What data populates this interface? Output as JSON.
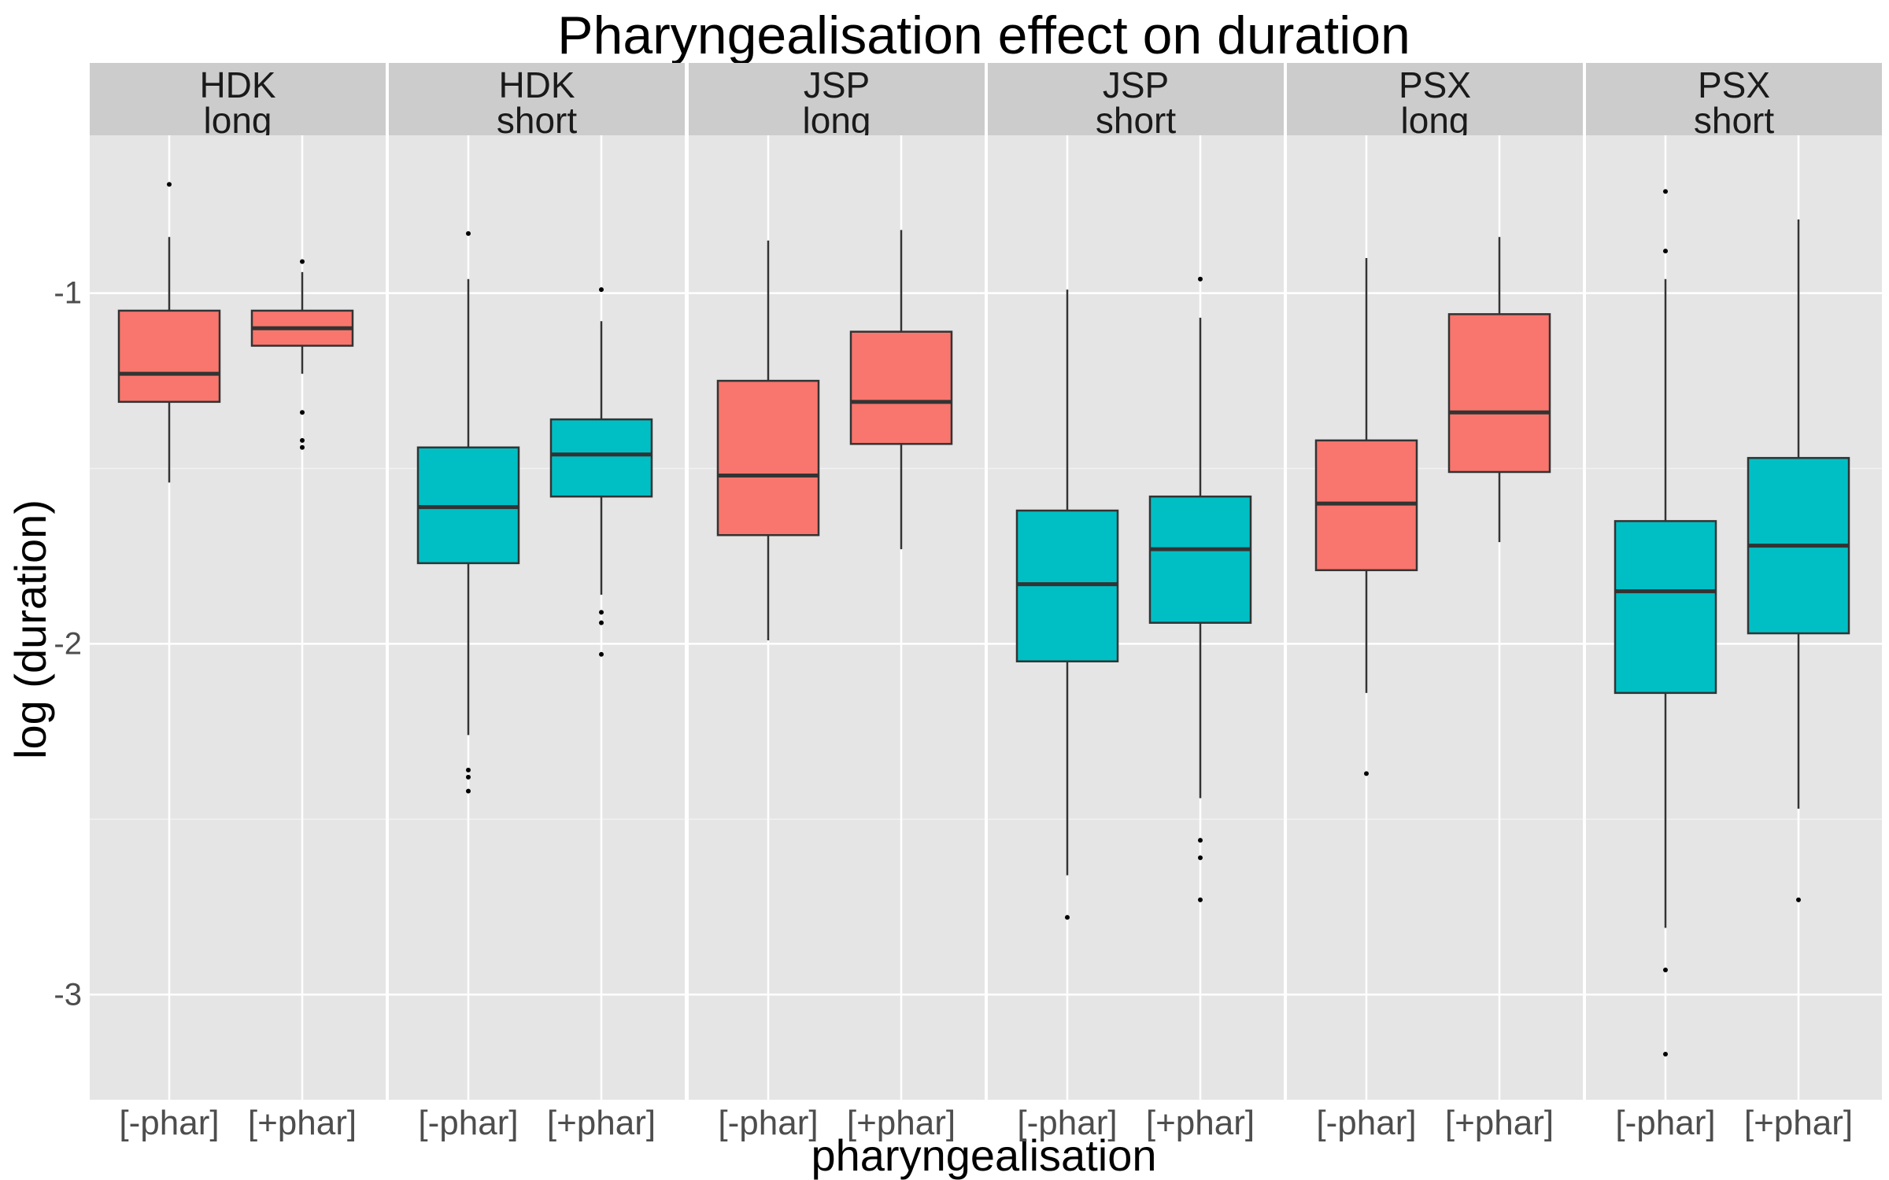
{
  "chart_data": {
    "type": "boxplot",
    "title": "Pharyngealisation effect on duration",
    "xlabel": "pharyngealisation",
    "ylabel": "log (duration)",
    "ylim": [
      -3.3,
      -0.55
    ],
    "yticks": [
      -1,
      -2,
      -3
    ],
    "ytick_labels": [
      "-1",
      "-2",
      "-3"
    ],
    "categories": [
      "[-phar]",
      "[+phar]"
    ],
    "grid": true,
    "legend": "none",
    "colors": {
      "long": "#F8766D",
      "short": "#00BFC4",
      "panel_bg": "#E5E5E5",
      "strip_bg": "#CCCCCC"
    },
    "panels": [
      {
        "strip": [
          "HDK",
          "long"
        ],
        "fill": "long",
        "boxes": [
          {
            "q1": -1.31,
            "median": -1.23,
            "q3": -1.05,
            "whisker_low": -1.54,
            "whisker_high": -0.84,
            "outliers": [
              -0.69
            ]
          },
          {
            "q1": -1.15,
            "median": -1.1,
            "q3": -1.05,
            "whisker_low": -1.23,
            "whisker_high": -0.94,
            "outliers": [
              -0.91,
              -1.34,
              -1.42,
              -1.44
            ]
          }
        ]
      },
      {
        "strip": [
          "HDK",
          "short"
        ],
        "fill": "short",
        "boxes": [
          {
            "q1": -1.77,
            "median": -1.61,
            "q3": -1.44,
            "whisker_low": -2.26,
            "whisker_high": -0.96,
            "outliers": [
              -0.83,
              -2.36,
              -2.38,
              -2.42
            ]
          },
          {
            "q1": -1.58,
            "median": -1.46,
            "q3": -1.36,
            "whisker_low": -1.86,
            "whisker_high": -1.08,
            "outliers": [
              -0.99,
              -1.91,
              -1.94,
              -2.03
            ]
          }
        ]
      },
      {
        "strip": [
          "JSP",
          "long"
        ],
        "fill": "long",
        "boxes": [
          {
            "q1": -1.69,
            "median": -1.52,
            "q3": -1.25,
            "whisker_low": -1.99,
            "whisker_high": -0.85,
            "outliers": []
          },
          {
            "q1": -1.43,
            "median": -1.31,
            "q3": -1.11,
            "whisker_low": -1.73,
            "whisker_high": -0.82,
            "outliers": []
          }
        ]
      },
      {
        "strip": [
          "JSP",
          "short"
        ],
        "fill": "short",
        "boxes": [
          {
            "q1": -2.05,
            "median": -1.83,
            "q3": -1.62,
            "whisker_low": -2.66,
            "whisker_high": -0.99,
            "outliers": [
              -2.78
            ]
          },
          {
            "q1": -1.94,
            "median": -1.73,
            "q3": -1.58,
            "whisker_low": -2.44,
            "whisker_high": -1.07,
            "outliers": [
              -0.96,
              -2.56,
              -2.61,
              -2.73
            ]
          }
        ]
      },
      {
        "strip": [
          "PSX",
          "long"
        ],
        "fill": "long",
        "boxes": [
          {
            "q1": -1.79,
            "median": -1.6,
            "q3": -1.42,
            "whisker_low": -2.14,
            "whisker_high": -0.9,
            "outliers": [
              -2.37
            ]
          },
          {
            "q1": -1.51,
            "median": -1.34,
            "q3": -1.06,
            "whisker_low": -1.71,
            "whisker_high": -0.84,
            "outliers": []
          }
        ]
      },
      {
        "strip": [
          "PSX",
          "short"
        ],
        "fill": "short",
        "boxes": [
          {
            "q1": -2.14,
            "median": -1.85,
            "q3": -1.65,
            "whisker_low": -2.81,
            "whisker_high": -0.96,
            "outliers": [
              -0.71,
              -0.88,
              -2.93,
              -3.17
            ]
          },
          {
            "q1": -1.97,
            "median": -1.72,
            "q3": -1.47,
            "whisker_low": -2.47,
            "whisker_high": -0.79,
            "outliers": [
              -2.73
            ]
          }
        ]
      }
    ]
  }
}
